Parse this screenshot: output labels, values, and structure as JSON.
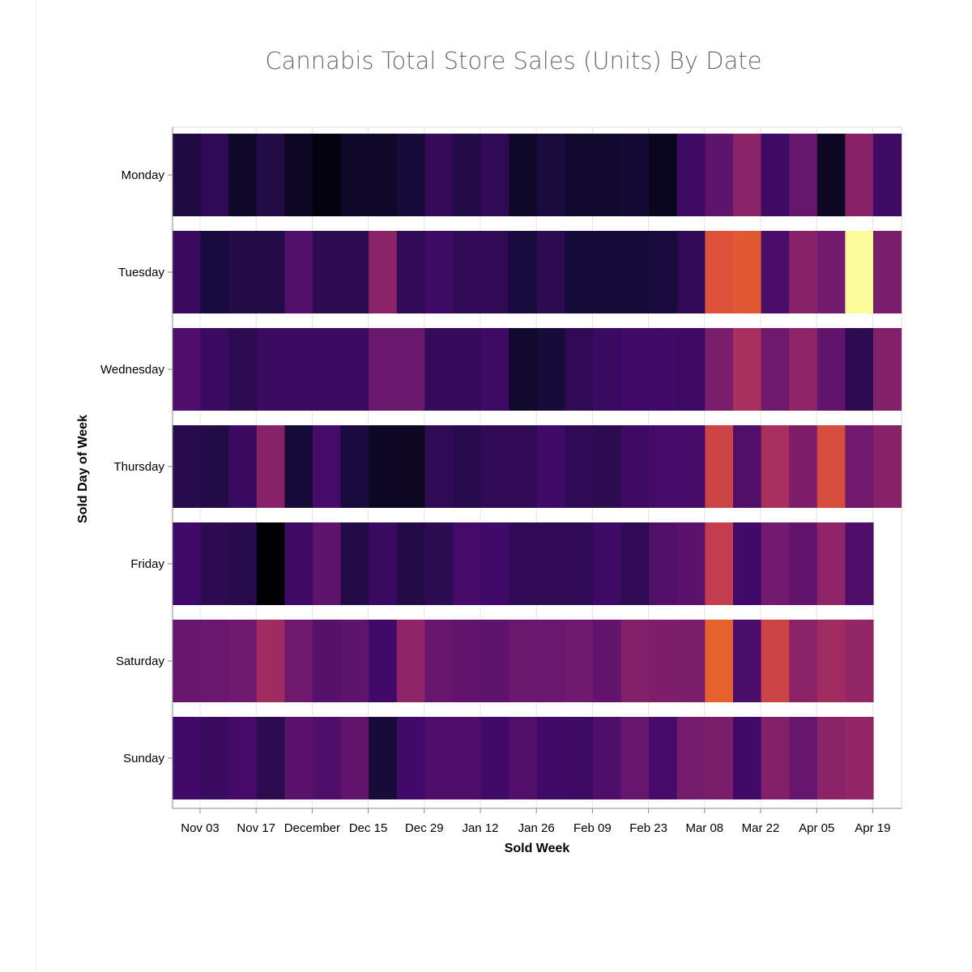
{
  "chart_data": {
    "type": "heatmap",
    "title": "Cannabis Total Store Sales (Units) By Date",
    "xlabel": "Sold Week",
    "ylabel": "Sold Day of Week",
    "y_categories": [
      "Monday",
      "Tuesday",
      "Wednesday",
      "Thursday",
      "Friday",
      "Saturday",
      "Sunday"
    ],
    "x_tick_labels": [
      "Nov 03",
      "Nov 17",
      "December",
      "Dec 15",
      "Dec 29",
      "Jan 12",
      "Jan 26",
      "Feb 09",
      "Feb 23",
      "Mar 08",
      "Mar 22",
      "Apr 05",
      "Apr 19"
    ],
    "x_weeks": [
      "Oct 28",
      "Nov 04",
      "Nov 11",
      "Nov 18",
      "Nov 25",
      "Dec 02",
      "Dec 09",
      "Dec 16",
      "Dec 23",
      "Dec 30",
      "Jan 06",
      "Jan 13",
      "Jan 20",
      "Jan 27",
      "Feb 03",
      "Feb 10",
      "Feb 17",
      "Feb 24",
      "Mar 02",
      "Mar 09",
      "Mar 16",
      "Mar 23",
      "Mar 30",
      "Apr 06",
      "Apr 13",
      "Apr 20"
    ],
    "color_scheme": "inferno",
    "value_scale": "relative 0-1 (unlabeled color intensity)",
    "values": [
      [
        0.12,
        0.16,
        0.07,
        0.13,
        0.06,
        0.02,
        0.07,
        0.07,
        0.1,
        0.17,
        0.13,
        0.16,
        0.07,
        0.11,
        0.08,
        0.08,
        0.09,
        0.05,
        0.19,
        0.27,
        0.38,
        0.19,
        0.29,
        0.06,
        0.37,
        0.19
      ],
      [
        0.18,
        0.11,
        0.13,
        0.13,
        0.24,
        0.15,
        0.15,
        0.38,
        0.16,
        0.19,
        0.16,
        0.16,
        0.11,
        0.15,
        0.1,
        0.1,
        0.1,
        0.11,
        0.16,
        0.6,
        0.62,
        0.22,
        0.37,
        0.32,
        0.99,
        0.34
      ],
      [
        0.23,
        0.18,
        0.15,
        0.18,
        0.18,
        0.18,
        0.18,
        0.3,
        0.3,
        0.17,
        0.17,
        0.19,
        0.08,
        0.1,
        0.16,
        0.18,
        0.2,
        0.2,
        0.19,
        0.34,
        0.45,
        0.31,
        0.39,
        0.28,
        0.15,
        0.36
      ],
      [
        0.14,
        0.13,
        0.18,
        0.37,
        0.1,
        0.21,
        0.11,
        0.06,
        0.06,
        0.16,
        0.14,
        0.16,
        0.16,
        0.2,
        0.16,
        0.15,
        0.19,
        0.21,
        0.21,
        0.55,
        0.24,
        0.45,
        0.35,
        0.58,
        0.32,
        0.37
      ],
      [
        0.2,
        0.15,
        0.14,
        0.0,
        0.19,
        0.27,
        0.13,
        0.18,
        0.13,
        0.15,
        0.21,
        0.2,
        0.16,
        0.16,
        0.16,
        0.19,
        0.16,
        0.24,
        0.26,
        0.52,
        0.2,
        0.32,
        0.28,
        0.39,
        0.23
      ],
      [
        0.29,
        0.3,
        0.31,
        0.43,
        0.31,
        0.25,
        0.27,
        0.2,
        0.39,
        0.29,
        0.28,
        0.27,
        0.3,
        0.3,
        0.31,
        0.28,
        0.36,
        0.35,
        0.34,
        0.64,
        0.22,
        0.55,
        0.38,
        0.43,
        0.4
      ],
      [
        0.2,
        0.18,
        0.21,
        0.15,
        0.26,
        0.23,
        0.28,
        0.1,
        0.2,
        0.23,
        0.23,
        0.2,
        0.24,
        0.2,
        0.19,
        0.23,
        0.29,
        0.21,
        0.33,
        0.34,
        0.2,
        0.36,
        0.29,
        0.38,
        0.4
      ]
    ],
    "grid": true
  }
}
